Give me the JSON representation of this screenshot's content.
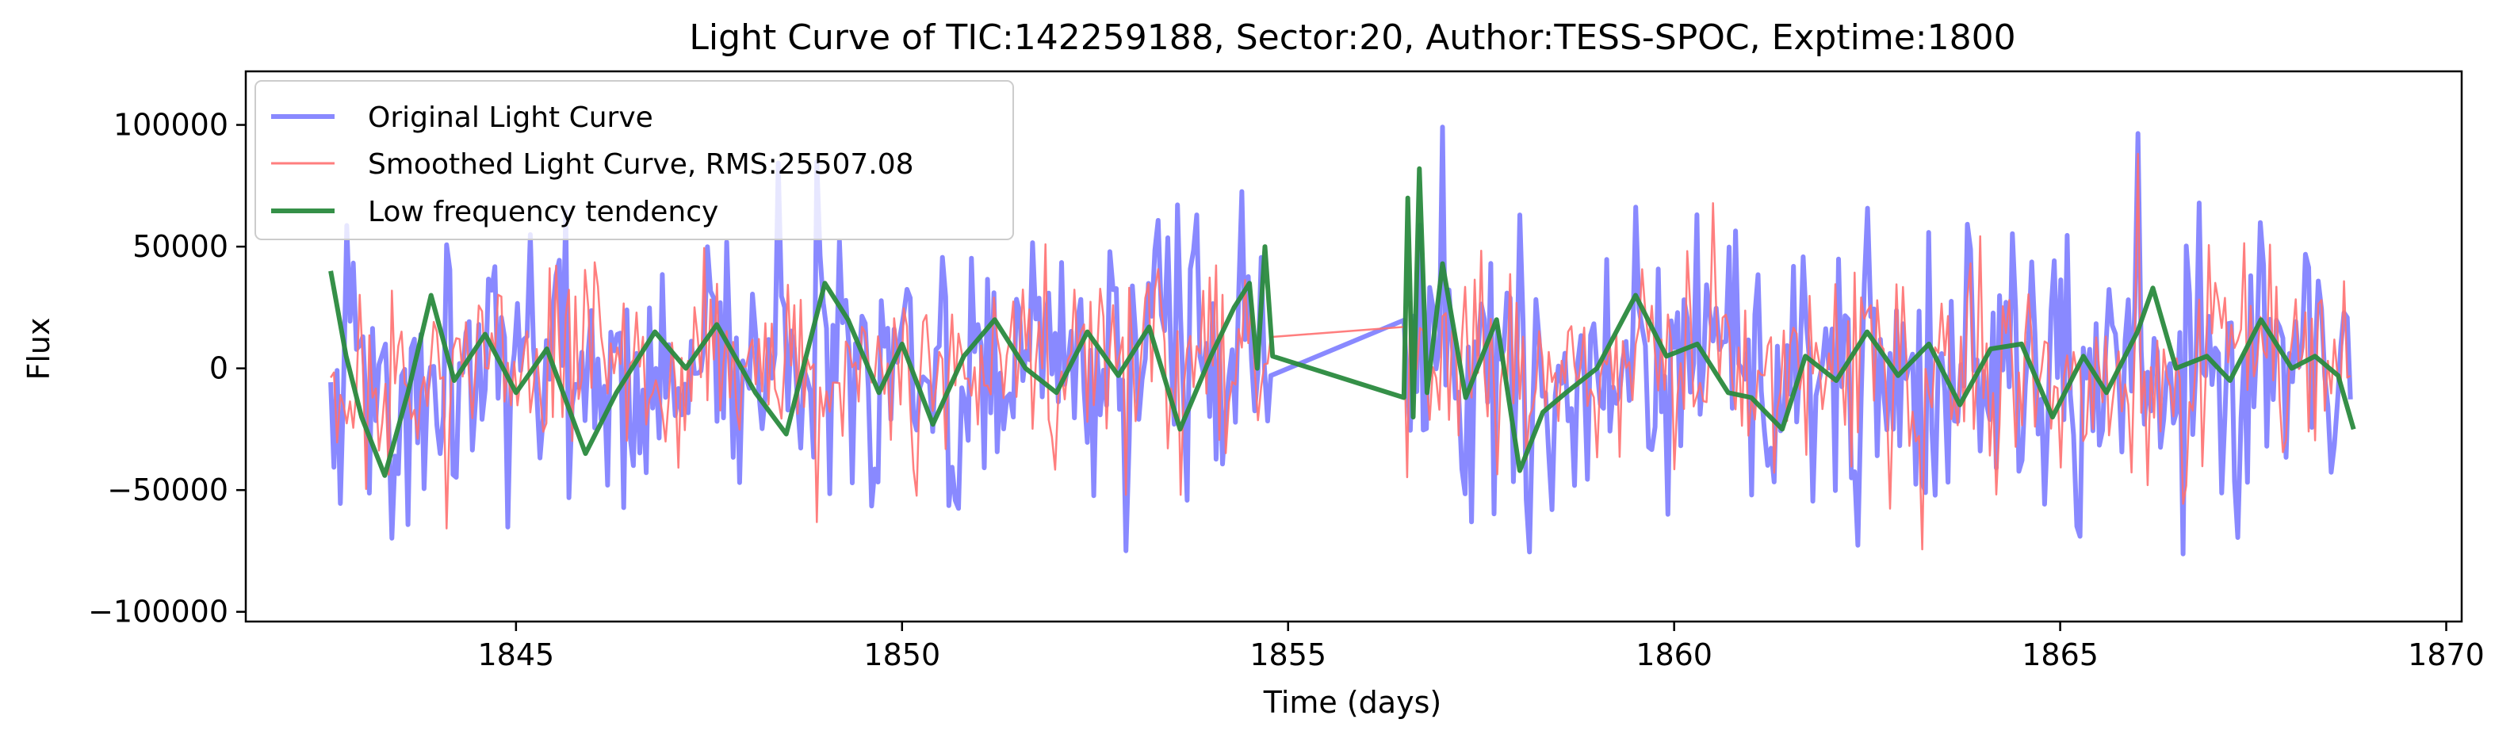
{
  "chart_data": {
    "type": "line",
    "title": "Light Curve of TIC:142259188, Sector:20, Author:TESS-SPOC, Exptime:1800",
    "xlabel": "Time (days)",
    "ylabel": "Flux",
    "xlim": [
      1841.5,
      1870.2
    ],
    "ylim": [
      -104000,
      122000
    ],
    "xticks": [
      1845,
      1850,
      1855,
      1860,
      1865,
      1870
    ],
    "xtick_labels": [
      "1845",
      "1850",
      "1855",
      "1860",
      "1865",
      "1870"
    ],
    "yticks": [
      -100000,
      -50000,
      0,
      50000,
      100000
    ],
    "ytick_labels": [
      "−100000",
      "−50000",
      "0",
      "50000",
      "100000"
    ],
    "grid": false,
    "legend_position": "top-left",
    "gap": [
      1854.8,
      1856.5
    ],
    "series": [
      {
        "name": "Original Light Curve",
        "color": "#6b6bff",
        "opacity": 0.8,
        "x_range": [
          1842.6,
          1868.8
        ],
        "peaks": [
          [
            1842.9,
            52000
          ],
          [
            1843.1,
            -52000
          ],
          [
            1843.4,
            -85000
          ],
          [
            1843.6,
            -65000
          ],
          [
            1844.1,
            52000
          ],
          [
            1844.2,
            -72000
          ],
          [
            1844.7,
            52000
          ],
          [
            1844.9,
            -80000
          ],
          [
            1845.5,
            60000
          ],
          [
            1845.7,
            -78000
          ],
          [
            1846.5,
            -68000
          ],
          [
            1847.5,
            62000
          ],
          [
            1847.9,
            -53000
          ],
          [
            1848.4,
            90000
          ],
          [
            1848.9,
            90000
          ],
          [
            1849.2,
            63000
          ],
          [
            1849.6,
            -62000
          ],
          [
            1850.7,
            -63000
          ],
          [
            1852.3,
            55000
          ],
          [
            1852.9,
            -75000
          ],
          [
            1853.3,
            82000
          ],
          [
            1853.8,
            80000
          ],
          [
            1854.4,
            75000
          ],
          [
            1857.0,
            100000
          ],
          [
            1857.3,
            -62000
          ],
          [
            1858.1,
            -88000
          ],
          [
            1858.4,
            -90000
          ],
          [
            1859.5,
            70000
          ],
          [
            1860.7,
            67000
          ],
          [
            1861.2,
            -68000
          ],
          [
            1862.5,
            68000
          ],
          [
            1863.8,
            62000
          ],
          [
            1864.4,
            62000
          ],
          [
            1865.2,
            -92000
          ],
          [
            1866.0,
            112000
          ],
          [
            1866.8,
            68000
          ],
          [
            1867.3,
            -70000
          ],
          [
            1867.6,
            65000
          ],
          [
            1868.2,
            58000
          ],
          [
            1868.5,
            -55000
          ]
        ]
      },
      {
        "name": "Smoothed Light Curve, RMS:25507.08",
        "color": "#ff7070",
        "opacity": 0.9,
        "x_range": [
          1842.6,
          1868.8
        ],
        "peaks": [
          [
            1842.9,
            -23000
          ],
          [
            1844.1,
            -68000
          ],
          [
            1848.9,
            -66000
          ],
          [
            1852.9,
            -52000
          ],
          [
            1853.3,
            88000
          ],
          [
            1854.8,
            5000
          ],
          [
            1856.5,
            17000
          ],
          [
            1857.5,
            50000
          ],
          [
            1858.1,
            -64000
          ],
          [
            1860.5,
            75000
          ],
          [
            1862.8,
            -62000
          ],
          [
            1863.2,
            -94000
          ],
          [
            1866.0,
            100000
          ],
          [
            1867.9,
            -60000
          ]
        ]
      },
      {
        "name": "Low frequency tendency",
        "color": "#2a8a3e",
        "opacity": 0.95,
        "points": [
          [
            1842.6,
            40000
          ],
          [
            1842.8,
            5000
          ],
          [
            1843.0,
            -20000
          ],
          [
            1843.3,
            -44000
          ],
          [
            1843.6,
            -10000
          ],
          [
            1843.9,
            30000
          ],
          [
            1844.2,
            -5000
          ],
          [
            1844.6,
            14000
          ],
          [
            1845.0,
            -10000
          ],
          [
            1845.4,
            8000
          ],
          [
            1845.9,
            -35000
          ],
          [
            1846.3,
            -10000
          ],
          [
            1846.8,
            15000
          ],
          [
            1847.2,
            0
          ],
          [
            1847.6,
            18000
          ],
          [
            1848.1,
            -10000
          ],
          [
            1848.5,
            -27000
          ],
          [
            1849.0,
            35000
          ],
          [
            1849.3,
            20000
          ],
          [
            1849.7,
            -10000
          ],
          [
            1850.0,
            10000
          ],
          [
            1850.4,
            -23000
          ],
          [
            1850.8,
            5000
          ],
          [
            1851.2,
            20000
          ],
          [
            1851.6,
            0
          ],
          [
            1852.0,
            -10000
          ],
          [
            1852.4,
            15000
          ],
          [
            1852.8,
            -3000
          ],
          [
            1853.2,
            17000
          ],
          [
            1853.6,
            -25000
          ],
          [
            1854.0,
            5000
          ],
          [
            1854.3,
            25000
          ],
          [
            1854.5,
            35000
          ],
          [
            1854.6,
            0
          ],
          [
            1854.7,
            50000
          ],
          [
            1854.8,
            5000
          ],
          [
            1856.5,
            -12000
          ],
          [
            1856.55,
            70000
          ],
          [
            1856.62,
            -20000
          ],
          [
            1856.7,
            82000
          ],
          [
            1856.8,
            -10000
          ],
          [
            1857.0,
            43000
          ],
          [
            1857.3,
            -12000
          ],
          [
            1857.7,
            20000
          ],
          [
            1858.0,
            -42000
          ],
          [
            1858.3,
            -18000
          ],
          [
            1858.6,
            -10000
          ],
          [
            1859.0,
            0
          ],
          [
            1859.5,
            30000
          ],
          [
            1859.9,
            5000
          ],
          [
            1860.3,
            10000
          ],
          [
            1860.7,
            -10000
          ],
          [
            1861.0,
            -12000
          ],
          [
            1861.4,
            -25000
          ],
          [
            1861.7,
            5000
          ],
          [
            1862.1,
            -5000
          ],
          [
            1862.5,
            15000
          ],
          [
            1862.9,
            -3000
          ],
          [
            1863.3,
            10000
          ],
          [
            1863.7,
            -15000
          ],
          [
            1864.1,
            8000
          ],
          [
            1864.5,
            10000
          ],
          [
            1864.9,
            -20000
          ],
          [
            1865.3,
            5000
          ],
          [
            1865.6,
            -10000
          ],
          [
            1866.0,
            15000
          ],
          [
            1866.2,
            33000
          ],
          [
            1866.5,
            0
          ],
          [
            1866.9,
            5000
          ],
          [
            1867.2,
            -5000
          ],
          [
            1867.6,
            20000
          ],
          [
            1868.0,
            0
          ],
          [
            1868.3,
            5000
          ],
          [
            1868.6,
            -3000
          ],
          [
            1868.8,
            -25000
          ]
        ]
      }
    ]
  }
}
